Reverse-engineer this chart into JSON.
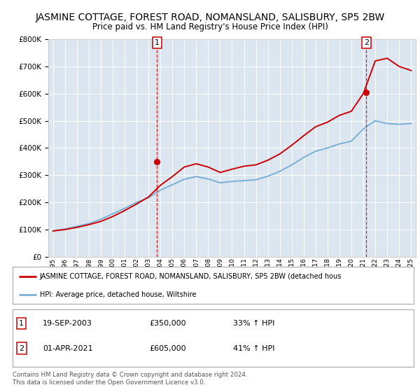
{
  "title": "JASMINE COTTAGE, FOREST ROAD, NOMANSLAND, SALISBURY, SP5 2BW",
  "subtitle": "Price paid vs. HM Land Registry's House Price Index (HPI)",
  "title_fontsize": 10,
  "subtitle_fontsize": 8.5,
  "bg_color": "#dce6f1",
  "red_color": "#cc0000",
  "blue_color": "#7ab0d4",
  "sale1_date_label": "19-SEP-2003",
  "sale1_price_label": "£350,000",
  "sale1_pct_label": "33% ↑ HPI",
  "sale2_date_label": "01-APR-2021",
  "sale2_price_label": "£605,000",
  "sale2_pct_label": "41% ↑ HPI",
  "sale1_year": 2003.72,
  "sale2_year": 2021.25,
  "sale1_price": 350000,
  "sale2_price": 605000,
  "ylim": [
    0,
    800000
  ],
  "xlim_left": 1994.6,
  "xlim_right": 2025.4,
  "years": [
    1995,
    1996,
    1997,
    1998,
    1999,
    2000,
    2001,
    2002,
    2003,
    2004,
    2005,
    2006,
    2007,
    2008,
    2009,
    2010,
    2011,
    2012,
    2013,
    2014,
    2015,
    2016,
    2017,
    2018,
    2019,
    2020,
    2021,
    2022,
    2023,
    2024,
    2025
  ],
  "hpi_avg": [
    95000,
    102000,
    112000,
    122000,
    138000,
    158000,
    178000,
    200000,
    217000,
    245000,
    265000,
    285000,
    295000,
    286000,
    272000,
    277000,
    280000,
    283000,
    296000,
    314000,
    338000,
    365000,
    388000,
    400000,
    415000,
    425000,
    470000,
    500000,
    490000,
    487000,
    490000
  ],
  "red_line": [
    95000,
    100000,
    108000,
    118000,
    130000,
    148000,
    170000,
    194000,
    220000,
    263000,
    295000,
    330000,
    342000,
    330000,
    310000,
    322000,
    333000,
    338000,
    355000,
    378000,
    410000,
    445000,
    478000,
    495000,
    520000,
    535000,
    600000,
    720000,
    730000,
    700000,
    685000
  ],
  "legend_red_label": "JASMINE COTTAGE, FOREST ROAD, NOMANSLAND, SALISBURY, SP5 2BW (detached hous",
  "legend_blue_label": "HPI: Average price, detached house, Wiltshire",
  "footer_line1": "Contains HM Land Registry data © Crown copyright and database right 2024.",
  "footer_line2": "This data is licensed under the Open Government Licence v3.0."
}
